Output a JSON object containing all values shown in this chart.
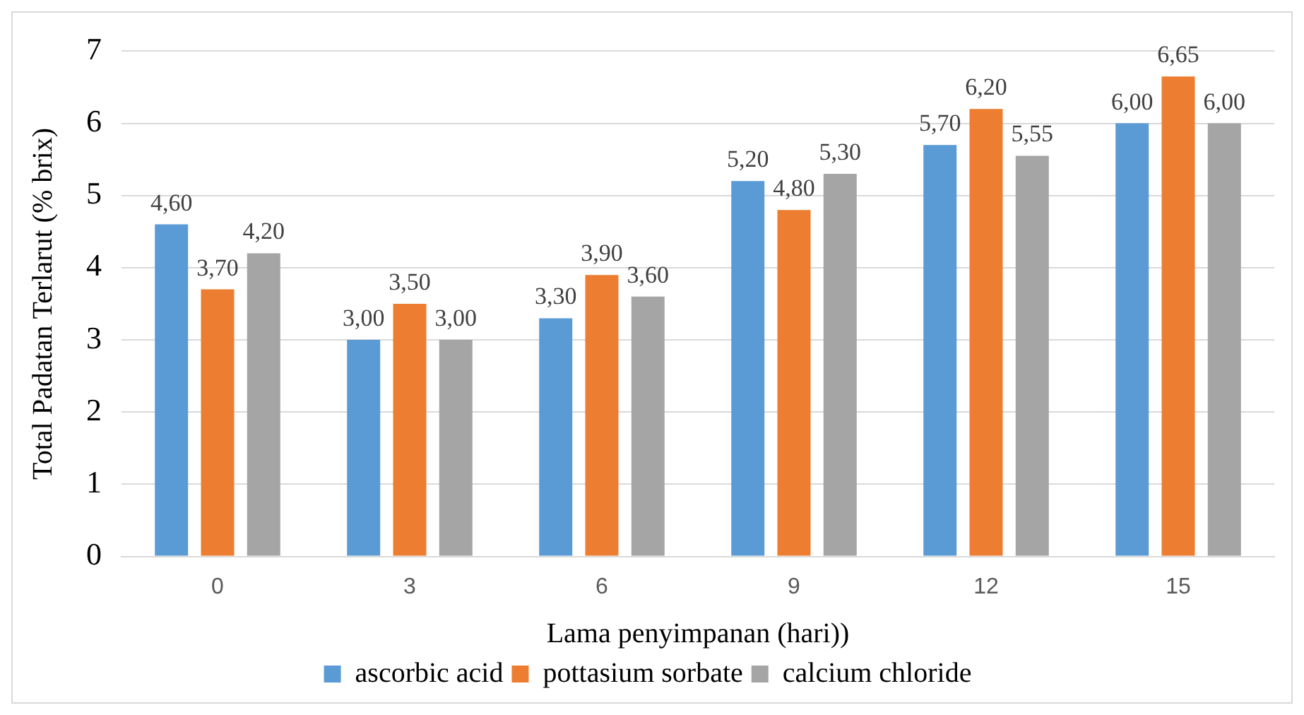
{
  "chart_data": {
    "type": "bar",
    "xlabel": "Lama penyimpanan (hari))",
    "ylabel": "Total Padatan Terlarut (% brix)",
    "categories": [
      "0",
      "3",
      "6",
      "9",
      "12",
      "15"
    ],
    "series": [
      {
        "name": "ascorbic acid",
        "color": "#5b9bd5",
        "values": [
          4.6,
          3.0,
          3.3,
          5.2,
          5.7,
          6.0
        ],
        "value_labels": [
          "4,60",
          "3,00",
          "3,30",
          "5,20",
          "5,70",
          "6,00"
        ]
      },
      {
        "name": "pottasium sorbate",
        "color": "#ed7d31",
        "values": [
          3.7,
          3.5,
          3.9,
          4.8,
          6.2,
          6.65
        ],
        "value_labels": [
          "3,70",
          "3,50",
          "3,90",
          "4,80",
          "6,20",
          "6,65"
        ]
      },
      {
        "name": "calcium chloride",
        "color": "#a5a5a5",
        "values": [
          4.2,
          3.0,
          3.6,
          5.3,
          5.55,
          6.0
        ],
        "value_labels": [
          "4,20",
          "3,00",
          "3,60",
          "5,30",
          "5,55",
          "6,00"
        ]
      }
    ],
    "ylim": [
      0,
      7
    ],
    "yticks": [
      0,
      1,
      2,
      3,
      4,
      5,
      6,
      7
    ],
    "grid": "y",
    "legend": "bottom"
  }
}
